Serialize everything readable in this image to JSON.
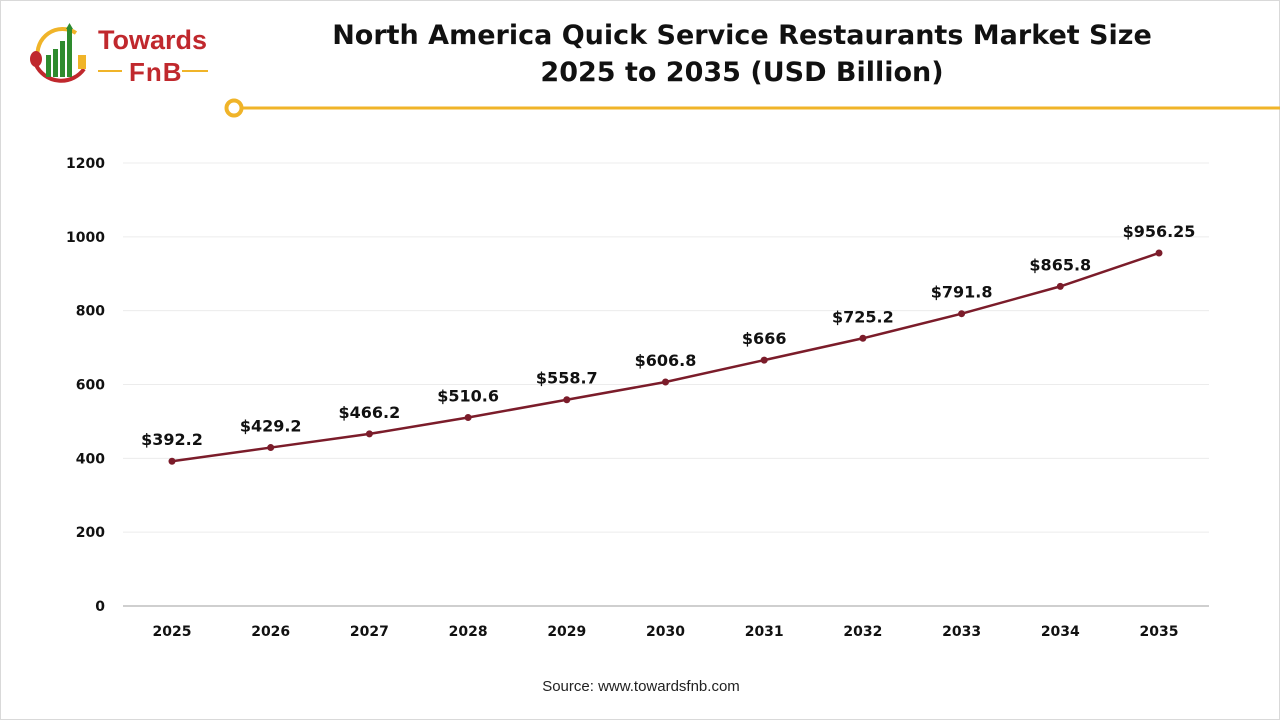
{
  "logo": {
    "line1": "Towards",
    "line2": "FnB"
  },
  "title_line1": "North America Quick Service Restaurants Market Size",
  "title_line2": "2025 to 2035 (USD Billion)",
  "source": "Source: www.towardsfnb.com",
  "colors": {
    "line": "#7b1c2a",
    "accent": "#f0b429",
    "brand": "#c0282d"
  },
  "chart_data": {
    "type": "line",
    "title": "North America Quick Service Restaurants Market Size 2025 to 2035 (USD Billion)",
    "categories": [
      "2025",
      "2026",
      "2027",
      "2028",
      "2029",
      "2030",
      "2031",
      "2032",
      "2033",
      "2034",
      "2035"
    ],
    "values": [
      392.2,
      429.2,
      466.2,
      510.6,
      558.7,
      606.8,
      666,
      725.2,
      791.8,
      865.8,
      956.25
    ],
    "data_labels": [
      "$392.2",
      "$429.2",
      "$466.2",
      "$510.6",
      "$558.7",
      "$606.8",
      "$666",
      "$725.2",
      "$791.8",
      "$865.8",
      "$956.25"
    ],
    "yticks": [
      "0",
      "200",
      "400",
      "600",
      "800",
      "1000",
      "1200"
    ],
    "ylim": [
      0,
      1200
    ],
    "grid": true,
    "legend": "none"
  }
}
